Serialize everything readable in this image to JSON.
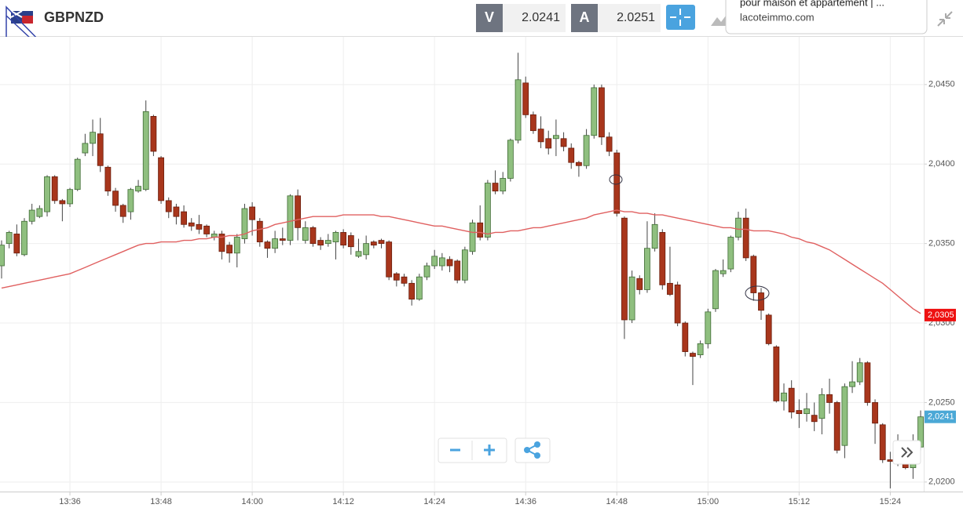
{
  "header": {
    "symbol": "GBPNZD",
    "bid_label": "V",
    "bid": 2.0241,
    "ask_label": "A",
    "ask": 2.0251
  },
  "ad": {
    "line1": "pour maison et appartement | ...",
    "line2": "lacoteimmo.com"
  },
  "chart_data": {
    "type": "candlestick",
    "categories": [
      null,
      null,
      null,
      null,
      null,
      null,
      null,
      null,
      null,
      "13:36",
      null,
      null,
      null,
      null,
      null,
      null,
      null,
      null,
      null,
      null,
      null,
      "13:48",
      null,
      null,
      null,
      null,
      null,
      null,
      null,
      null,
      null,
      null,
      null,
      "14:00",
      null,
      null,
      null,
      null,
      null,
      null,
      null,
      null,
      null,
      null,
      null,
      "14:12",
      null,
      null,
      null,
      null,
      null,
      null,
      null,
      null,
      null,
      null,
      null,
      "14:24",
      null,
      null,
      null,
      null,
      null,
      null,
      null,
      null,
      null,
      null,
      null,
      "14:36",
      null,
      null,
      null,
      null,
      null,
      null,
      null,
      null,
      null,
      null,
      null,
      "14:48",
      null,
      null,
      null,
      null,
      null,
      null,
      null,
      null,
      null,
      null,
      null,
      "15:00",
      null,
      null,
      null,
      null,
      null,
      null,
      null,
      null,
      null,
      null,
      null,
      "15:12",
      null,
      null,
      null,
      null,
      null,
      null,
      null,
      null,
      null,
      null,
      null,
      "15:24",
      null,
      null,
      null,
      null
    ],
    "open": [
      2.0336,
      2.035,
      2.0356,
      2.0343,
      2.0364,
      2.0367,
      2.037,
      2.0392,
      2.0377,
      2.0375,
      2.0384,
      2.0407,
      2.0413,
      2.0419,
      2.0398,
      2.0383,
      2.0374,
      2.037,
      2.0383,
      2.0384,
      2.043,
      2.0404,
      2.0377,
      2.0373,
      2.037,
      2.0363,
      2.0362,
      2.0361,
      2.0354,
      2.0356,
      2.0349,
      2.0344,
      2.0353,
      2.0373,
      2.0364,
      2.0351,
      2.0347,
      2.0353,
      2.0352,
      2.038,
      2.0352,
      2.036,
      2.0352,
      2.035,
      2.0351,
      2.0357,
      2.0355,
      2.0342,
      2.0343,
      2.0351,
      2.0352,
      2.0351,
      2.0331,
      2.0329,
      2.0325,
      2.0315,
      2.0329,
      2.0336,
      2.0336,
      2.034,
      2.0339,
      2.0327,
      2.0345,
      2.0363,
      2.0354,
      2.0388,
      2.0383,
      2.0391,
      2.0415,
      2.0451,
      2.0431,
      2.0422,
      2.0416,
      2.0416,
      2.0416,
      2.041,
      2.0401,
      2.0399,
      2.0418,
      2.0448,
      2.0417,
      2.0407,
      2.0366,
      2.0302,
      2.0328,
      2.0321,
      2.0347,
      2.0357,
      2.0325,
      2.0324,
      2.03,
      2.0281,
      2.028,
      2.0287,
      2.0309,
      2.0331,
      2.0334,
      2.0354,
      2.0366,
      2.0342,
      2.0319,
      2.0305,
      2.0285,
      2.0251,
      2.0259,
      2.0245,
      2.0243,
      2.0242,
      2.024,
      2.0255,
      2.025,
      2.0223,
      2.026,
      2.0263,
      2.0275,
      2.025,
      2.0236,
      2.0214,
      2.0214,
      2.0214,
      2.0209,
      2.0222
    ],
    "high": [
      2.0352,
      2.0358,
      2.0362,
      2.0366,
      2.0375,
      2.0374,
      2.0393,
      2.0393,
      2.0378,
      2.0385,
      2.0404,
      2.0419,
      2.0428,
      2.0429,
      2.0399,
      2.0385,
      2.0375,
      2.0385,
      2.039,
      2.044,
      2.0431,
      2.0405,
      2.0379,
      2.0375,
      2.0374,
      2.0366,
      2.0368,
      2.0362,
      2.0358,
      2.0358,
      2.0351,
      2.0356,
      2.0375,
      2.0376,
      2.0366,
      2.0352,
      2.0358,
      2.036,
      2.0381,
      2.0384,
      2.0364,
      2.0361,
      2.0354,
      2.0356,
      2.0358,
      2.0359,
      2.0357,
      2.0353,
      2.0355,
      2.0352,
      2.0353,
      2.0352,
      2.0332,
      2.0331,
      2.0327,
      2.0331,
      2.0338,
      2.0346,
      2.0344,
      2.0342,
      2.034,
      2.0348,
      2.0365,
      2.0374,
      2.039,
      2.0396,
      2.0395,
      2.0416,
      2.047,
      2.0455,
      2.0433,
      2.043,
      2.0421,
      2.0428,
      2.042,
      2.0413,
      2.0402,
      2.0422,
      2.045,
      2.045,
      2.042,
      2.0409,
      2.0367,
      2.0333,
      2.033,
      2.0364,
      2.0369,
      2.0359,
      2.0348,
      2.0326,
      2.0301,
      2.0282,
      2.0289,
      2.0309,
      2.0334,
      2.034,
      2.0355,
      2.037,
      2.0372,
      2.0343,
      2.0322,
      2.0306,
      2.0286,
      2.0262,
      2.0264,
      2.0252,
      2.0256,
      2.025,
      2.0259,
      2.0265,
      2.0251,
      2.0262,
      2.0276,
      2.0278,
      2.0276,
      2.0252,
      2.0237,
      2.0219,
      2.023,
      2.022,
      2.023,
      2.0245
    ],
    "low": [
      2.0328,
      2.0347,
      2.0342,
      2.0342,
      2.0362,
      2.0366,
      2.0367,
      2.0375,
      2.0364,
      2.0373,
      2.0383,
      2.0405,
      2.0405,
      2.0395,
      2.038,
      2.037,
      2.0363,
      2.0365,
      2.0382,
      2.0383,
      2.0405,
      2.0375,
      2.0366,
      2.0362,
      2.036,
      2.0358,
      2.0356,
      2.0354,
      2.0352,
      2.034,
      2.0338,
      2.0335,
      2.035,
      2.0355,
      2.0348,
      2.0341,
      2.0344,
      2.0349,
      2.0349,
      2.0352,
      2.035,
      2.0348,
      2.0346,
      2.0348,
      2.034,
      2.0347,
      2.0343,
      2.0341,
      2.034,
      2.0347,
      2.0347,
      2.0327,
      2.0323,
      2.0323,
      2.0311,
      2.0314,
      2.0327,
      2.0334,
      2.0333,
      2.0332,
      2.0325,
      2.0325,
      2.0343,
      2.0352,
      2.0352,
      2.0381,
      2.0381,
      2.0389,
      2.0413,
      2.0429,
      2.0419,
      2.041,
      2.0406,
      2.0405,
      2.0408,
      2.0397,
      2.0392,
      2.0397,
      2.0416,
      2.0412,
      2.0405,
      2.0367,
      2.029,
      2.03,
      2.0318,
      2.0319,
      2.0345,
      2.0321,
      2.0317,
      2.0298,
      2.0279,
      2.0261,
      2.0278,
      2.0284,
      2.0307,
      2.0329,
      2.0332,
      2.0352,
      2.0339,
      2.0314,
      2.0302,
      2.0286,
      2.025,
      2.0245,
      2.024,
      2.0234,
      2.0238,
      2.0232,
      2.023,
      2.0243,
      2.0218,
      2.0215,
      2.0256,
      2.0261,
      2.0248,
      2.0224,
      2.0212,
      2.0196,
      2.021,
      2.0208,
      2.0202,
      2.022
    ],
    "close": [
      2.0349,
      2.0357,
      2.0344,
      2.0364,
      2.0371,
      2.0372,
      2.0392,
      2.0377,
      2.0375,
      2.0384,
      2.0403,
      2.0413,
      2.042,
      2.0399,
      2.0383,
      2.0374,
      2.0367,
      2.0384,
      2.0386,
      2.0433,
      2.0408,
      2.0377,
      2.037,
      2.0367,
      2.0362,
      2.0361,
      2.0359,
      2.0356,
      2.0356,
      2.0345,
      2.0344,
      2.0354,
      2.0372,
      2.0365,
      2.0351,
      2.0347,
      2.0353,
      2.0352,
      2.038,
      2.036,
      2.036,
      2.035,
      2.0349,
      2.0352,
      2.0357,
      2.0349,
      2.0348,
      2.0345,
      2.035,
      2.0349,
      2.035,
      2.0329,
      2.0327,
      2.0325,
      2.0315,
      2.0329,
      2.0336,
      2.0342,
      2.0341,
      2.0336,
      2.0327,
      2.0346,
      2.0363,
      2.0354,
      2.0388,
      2.0383,
      2.0391,
      2.0415,
      2.0453,
      2.0431,
      2.0421,
      2.0414,
      2.041,
      2.0418,
      2.0411,
      2.0401,
      2.0399,
      2.0418,
      2.0448,
      2.0417,
      2.0408,
      2.0369,
      2.0302,
      2.0329,
      2.0321,
      2.0347,
      2.0362,
      2.0324,
      2.0318,
      2.03,
      2.0282,
      2.0279,
      2.0287,
      2.0307,
      2.0333,
      2.0333,
      2.0354,
      2.0366,
      2.0341,
      2.0319,
      2.0308,
      2.0287,
      2.0251,
      2.0256,
      2.0244,
      2.0243,
      2.0246,
      2.0238,
      2.0255,
      2.025,
      2.022,
      2.026,
      2.0263,
      2.0275,
      2.025,
      2.0237,
      2.0214,
      2.0213,
      2.0215,
      2.0209,
      2.0214,
      2.0241
    ],
    "up_color": "#8fbf7f",
    "down_color": "#a8361c",
    "moving_average": {
      "color": "#e06060",
      "values": [
        2.0322,
        2.0323,
        2.0324,
        2.0325,
        2.0326,
        2.0327,
        2.0328,
        2.0329,
        2.033,
        2.0331,
        2.0333,
        2.0335,
        2.0337,
        2.0339,
        2.0341,
        2.0343,
        2.0345,
        2.0347,
        2.0349,
        2.035,
        2.035,
        2.0351,
        2.0351,
        2.0351,
        2.0352,
        2.0352,
        2.0353,
        2.0353,
        2.0354,
        2.0354,
        2.0355,
        2.0355,
        2.0356,
        2.0358,
        2.0359,
        2.036,
        2.0362,
        2.0363,
        2.0364,
        2.0365,
        2.0366,
        2.0367,
        2.0367,
        2.0367,
        2.0367,
        2.0368,
        2.0368,
        2.0368,
        2.0368,
        2.0368,
        2.0367,
        2.0367,
        2.0366,
        2.0365,
        2.0364,
        2.0363,
        2.0362,
        2.0361,
        2.0361,
        2.036,
        2.0359,
        2.0358,
        2.0357,
        2.0357,
        2.0356,
        2.0357,
        2.0357,
        2.0358,
        2.0358,
        2.0359,
        2.036,
        2.036,
        2.0361,
        2.0362,
        2.0363,
        2.0364,
        2.0365,
        2.0366,
        2.0368,
        2.0369,
        2.037,
        2.0371,
        2.037,
        2.037,
        2.0369,
        2.0369,
        2.0368,
        2.0368,
        2.0367,
        2.0366,
        2.0365,
        2.0364,
        2.0363,
        2.0362,
        2.0361,
        2.036,
        2.036,
        2.0359,
        2.0359,
        2.0358,
        2.0358,
        2.0358,
        2.0357,
        2.0356,
        2.0354,
        2.0353,
        2.0351,
        2.035,
        2.0348,
        2.0346,
        2.0343,
        2.034,
        2.0337,
        2.0334,
        2.0331,
        2.0328,
        2.0325,
        2.0321,
        2.0317,
        2.0313,
        2.0309,
        2.0306
      ]
    },
    "ylim": [
      2.0194,
      2.048
    ],
    "yticks": [
      {
        "value": 2.02,
        "label": "2,0200"
      },
      {
        "value": 2.025,
        "label": "2,0250"
      },
      {
        "value": 2.03,
        "label": "2,0300"
      },
      {
        "value": 2.035,
        "label": "2,0350"
      },
      {
        "value": 2.04,
        "label": "2,0400"
      },
      {
        "value": 2.045,
        "label": "2,0450"
      }
    ],
    "grid": true,
    "price_tags": [
      {
        "value": 2.0305,
        "label": "2,0305",
        "color": "#ee1111"
      },
      {
        "value": 2.0241,
        "label": "2,0241",
        "color": "#4ba8d6"
      }
    ]
  }
}
